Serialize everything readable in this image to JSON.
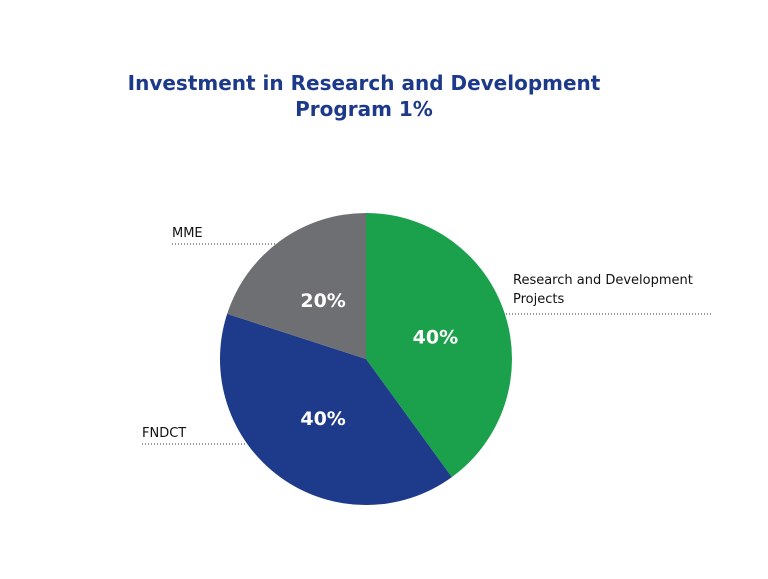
{
  "chart_data": {
    "type": "pie",
    "title_lines": [
      "Investment in Research and Development",
      "Program 1%"
    ],
    "slices": [
      {
        "label_lines": [
          "Research and Development",
          "Projects"
        ],
        "value": 40,
        "value_label": "40%",
        "color": "#1ba14b"
      },
      {
        "label_lines": [
          "FNDCT"
        ],
        "value": 40,
        "value_label": "40%",
        "color": "#1e3a8a"
      },
      {
        "label_lines": [
          "MME"
        ],
        "value": 20,
        "value_label": "20%",
        "color": "#6e6f72"
      }
    ]
  }
}
